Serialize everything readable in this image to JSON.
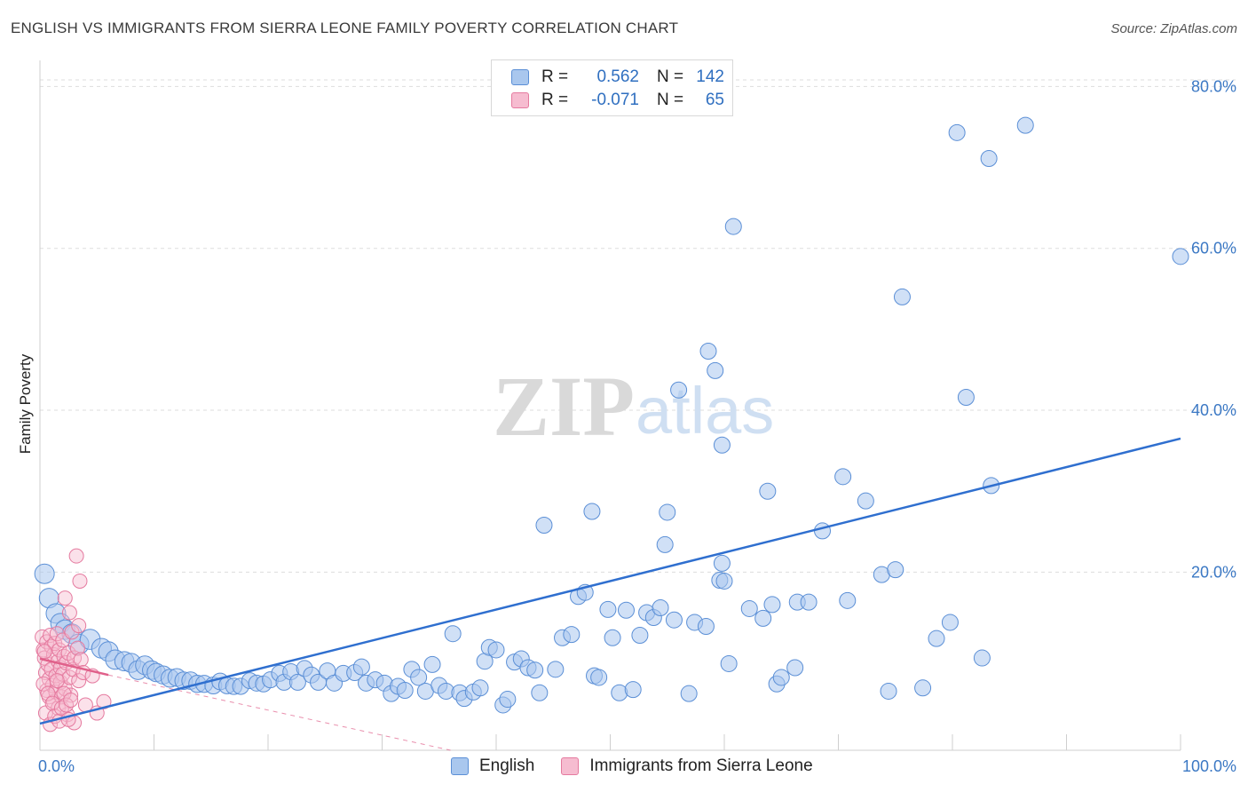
{
  "header": {
    "title": "ENGLISH VS IMMIGRANTS FROM SIERRA LEONE FAMILY POVERTY CORRELATION CHART",
    "source": "Source: ZipAtlas.com"
  },
  "watermark": {
    "zip": "ZIP",
    "atlas": "atlas"
  },
  "legend": {
    "rows": [
      {
        "r_label": "R =",
        "r_value": "0.562",
        "n_label": "N =",
        "n_value": "142",
        "color": "#a9c7ee",
        "border": "#5b8fd6"
      },
      {
        "r_label": "R =",
        "r_value": "-0.071",
        "n_label": "N =",
        "n_value": "65",
        "color": "#f6bcd0",
        "border": "#e57a9f"
      }
    ]
  },
  "bottom_legend": [
    {
      "label": "English",
      "color": "#a9c7ee",
      "border": "#5b8fd6"
    },
    {
      "label": "Immigrants from Sierra Leone",
      "color": "#f6bcd0",
      "border": "#e57a9f"
    }
  ],
  "chart_data": {
    "type": "scatter",
    "title": "ENGLISH VS IMMIGRANTS FROM SIERRA LEONE FAMILY POVERTY CORRELATION CHART",
    "xlabel": "",
    "ylabel": "Family Poverty",
    "xlim": [
      0,
      100
    ],
    "ylim": [
      -2,
      83
    ],
    "x_tick_labels": [
      "0.0%",
      "100.0%"
    ],
    "y_ticks": [
      20,
      40,
      60,
      80
    ],
    "y_tick_labels": [
      "20.0%",
      "40.0%",
      "60.0%",
      "80.0%"
    ],
    "grid": true,
    "colors": {
      "english": "#5b8fd6",
      "english_fill": "#a9c7ee",
      "sierra": "#e57a9f",
      "sierra_fill": "#f6bcd0",
      "trend_blue": "#2f6fcf",
      "trend_pink": "#e0608a"
    },
    "series": [
      {
        "name": "English",
        "points": [
          [
            0.4,
            19.8
          ],
          [
            0.8,
            16.8
          ],
          [
            1.4,
            14.9
          ],
          [
            1.8,
            13.7
          ],
          [
            2.2,
            12.9
          ],
          [
            2.8,
            12.4
          ],
          [
            3.4,
            11.1
          ],
          [
            4.4,
            11.7
          ],
          [
            5.4,
            10.6
          ],
          [
            6.0,
            10.2
          ],
          [
            6.6,
            9.2
          ],
          [
            7.4,
            9.0
          ],
          [
            8.0,
            8.8
          ],
          [
            8.6,
            7.9
          ],
          [
            9.2,
            8.5
          ],
          [
            9.8,
            7.9
          ],
          [
            10.2,
            7.6
          ],
          [
            10.8,
            7.3
          ],
          [
            11.4,
            6.9
          ],
          [
            12.0,
            7.0
          ],
          [
            12.6,
            6.6
          ],
          [
            13.2,
            6.6
          ],
          [
            13.8,
            6.2
          ],
          [
            14.4,
            6.2
          ],
          [
            15.2,
            6.0
          ],
          [
            15.8,
            6.5
          ],
          [
            16.4,
            6.0
          ],
          [
            17.0,
            5.9
          ],
          [
            17.6,
            5.9
          ],
          [
            18.4,
            6.6
          ],
          [
            19.0,
            6.3
          ],
          [
            19.6,
            6.2
          ],
          [
            20.2,
            6.7
          ],
          [
            21.0,
            7.5
          ],
          [
            21.4,
            6.4
          ],
          [
            22.0,
            7.7
          ],
          [
            22.6,
            6.4
          ],
          [
            23.2,
            8.1
          ],
          [
            23.8,
            7.3
          ],
          [
            24.4,
            6.4
          ],
          [
            25.2,
            7.8
          ],
          [
            25.8,
            6.3
          ],
          [
            26.6,
            7.5
          ],
          [
            27.6,
            7.6
          ],
          [
            28.2,
            8.3
          ],
          [
            28.6,
            6.3
          ],
          [
            29.4,
            6.7
          ],
          [
            30.2,
            6.3
          ],
          [
            30.8,
            5.0
          ],
          [
            31.4,
            5.9
          ],
          [
            32.0,
            5.4
          ],
          [
            32.6,
            8.0
          ],
          [
            33.2,
            7.0
          ],
          [
            33.8,
            5.3
          ],
          [
            34.4,
            8.6
          ],
          [
            35.0,
            6.0
          ],
          [
            35.6,
            5.3
          ],
          [
            36.2,
            12.4
          ],
          [
            36.8,
            5.1
          ],
          [
            37.2,
            4.4
          ],
          [
            38.0,
            5.2
          ],
          [
            38.6,
            5.7
          ],
          [
            39.0,
            9.0
          ],
          [
            39.4,
            10.7
          ],
          [
            40.0,
            10.4
          ],
          [
            40.6,
            3.6
          ],
          [
            41.0,
            4.3
          ],
          [
            41.6,
            8.9
          ],
          [
            42.2,
            9.3
          ],
          [
            42.8,
            8.2
          ],
          [
            43.4,
            7.9
          ],
          [
            43.8,
            5.1
          ],
          [
            44.2,
            25.8
          ],
          [
            45.2,
            8.0
          ],
          [
            45.8,
            11.9
          ],
          [
            46.6,
            12.3
          ],
          [
            47.2,
            17.0
          ],
          [
            47.8,
            17.5
          ],
          [
            48.4,
            27.5
          ],
          [
            48.6,
            7.2
          ],
          [
            49.0,
            7.0
          ],
          [
            49.8,
            15.4
          ],
          [
            50.2,
            11.9
          ],
          [
            50.8,
            5.1
          ],
          [
            51.4,
            15.3
          ],
          [
            52.0,
            5.5
          ],
          [
            52.6,
            12.2
          ],
          [
            53.2,
            15.0
          ],
          [
            53.8,
            14.4
          ],
          [
            54.4,
            15.6
          ],
          [
            54.8,
            23.4
          ],
          [
            55.0,
            27.4
          ],
          [
            55.6,
            14.1
          ],
          [
            56.0,
            42.5
          ],
          [
            56.9,
            5.0
          ],
          [
            57.4,
            13.8
          ],
          [
            58.4,
            13.3
          ],
          [
            58.6,
            47.3
          ],
          [
            59.2,
            44.9
          ],
          [
            59.6,
            19.0
          ],
          [
            59.8,
            21.1
          ],
          [
            59.8,
            35.7
          ],
          [
            60.0,
            18.9
          ],
          [
            60.4,
            8.7
          ],
          [
            60.8,
            62.7
          ],
          [
            62.2,
            15.5
          ],
          [
            63.4,
            14.3
          ],
          [
            63.8,
            30.0
          ],
          [
            64.2,
            16.0
          ],
          [
            64.6,
            6.2
          ],
          [
            65.0,
            7.0
          ],
          [
            66.2,
            8.2
          ],
          [
            66.4,
            16.3
          ],
          [
            67.4,
            16.3
          ],
          [
            68.6,
            25.1
          ],
          [
            70.4,
            31.8
          ],
          [
            70.8,
            16.5
          ],
          [
            72.4,
            28.8
          ],
          [
            73.8,
            19.7
          ],
          [
            74.4,
            5.3
          ],
          [
            75.0,
            20.3
          ],
          [
            75.6,
            54.0
          ],
          [
            77.4,
            5.7
          ],
          [
            78.6,
            11.8
          ],
          [
            79.8,
            13.8
          ],
          [
            80.4,
            74.3
          ],
          [
            81.2,
            41.6
          ],
          [
            82.6,
            9.4
          ],
          [
            83.2,
            71.1
          ],
          [
            83.4,
            30.7
          ],
          [
            86.4,
            75.2
          ],
          [
            100.0,
            59.0
          ]
        ]
      },
      {
        "name": "Immigrants from Sierra Leone",
        "points": [
          [
            0.2,
            12.0
          ],
          [
            0.3,
            10.4
          ],
          [
            0.4,
            9.4
          ],
          [
            0.5,
            7.6
          ],
          [
            0.6,
            11.4
          ],
          [
            0.6,
            5.4
          ],
          [
            0.7,
            8.6
          ],
          [
            0.8,
            6.8
          ],
          [
            0.8,
            4.6
          ],
          [
            0.9,
            12.2
          ],
          [
            1.0,
            10.8
          ],
          [
            1.0,
            8.0
          ],
          [
            1.1,
            6.0
          ],
          [
            1.2,
            9.8
          ],
          [
            1.2,
            4.0
          ],
          [
            1.3,
            11.2
          ],
          [
            1.4,
            7.2
          ],
          [
            1.4,
            5.2
          ],
          [
            1.5,
            12.4
          ],
          [
            1.6,
            9.0
          ],
          [
            1.6,
            3.2
          ],
          [
            1.7,
            10.4
          ],
          [
            1.8,
            6.4
          ],
          [
            1.8,
            8.2
          ],
          [
            1.9,
            4.6
          ],
          [
            2.0,
            11.6
          ],
          [
            2.0,
            7.4
          ],
          [
            2.1,
            9.6
          ],
          [
            2.2,
            5.6
          ],
          [
            2.2,
            16.8
          ],
          [
            2.3,
            8.8
          ],
          [
            2.4,
            2.4
          ],
          [
            2.5,
            10.0
          ],
          [
            2.6,
            7.0
          ],
          [
            2.6,
            15.0
          ],
          [
            2.7,
            4.8
          ],
          [
            2.8,
            12.6
          ],
          [
            2.9,
            8.0
          ],
          [
            3.0,
            1.4
          ],
          [
            3.0,
            9.4
          ],
          [
            3.2,
            22.0
          ],
          [
            3.3,
            10.6
          ],
          [
            3.4,
            6.6
          ],
          [
            3.4,
            13.4
          ],
          [
            3.5,
            18.9
          ],
          [
            3.6,
            9.2
          ],
          [
            3.8,
            7.6
          ],
          [
            4.0,
            3.6
          ],
          [
            0.3,
            6.2
          ],
          [
            0.5,
            2.6
          ],
          [
            0.7,
            5.0
          ],
          [
            0.9,
            1.2
          ],
          [
            1.1,
            3.8
          ],
          [
            1.3,
            2.2
          ],
          [
            1.5,
            6.6
          ],
          [
            1.7,
            1.6
          ],
          [
            1.9,
            3.2
          ],
          [
            2.1,
            5.0
          ],
          [
            2.3,
            3.6
          ],
          [
            2.5,
            1.8
          ],
          [
            2.7,
            4.2
          ],
          [
            5.0,
            2.6
          ],
          [
            5.6,
            4.0
          ],
          [
            4.6,
            7.2
          ],
          [
            0.4,
            10.2
          ]
        ]
      }
    ],
    "trend_lines": [
      {
        "name": "English",
        "x": [
          0,
          100
        ],
        "y": [
          1.3,
          36.5
        ]
      },
      {
        "name": "Immigrants from Sierra Leone",
        "x": [
          0,
          6
        ],
        "y": [
          9.3,
          7.3
        ],
        "dashed_extension": {
          "x": [
            6,
            36
          ],
          "y": [
            7.3,
            -2
          ]
        }
      }
    ]
  }
}
